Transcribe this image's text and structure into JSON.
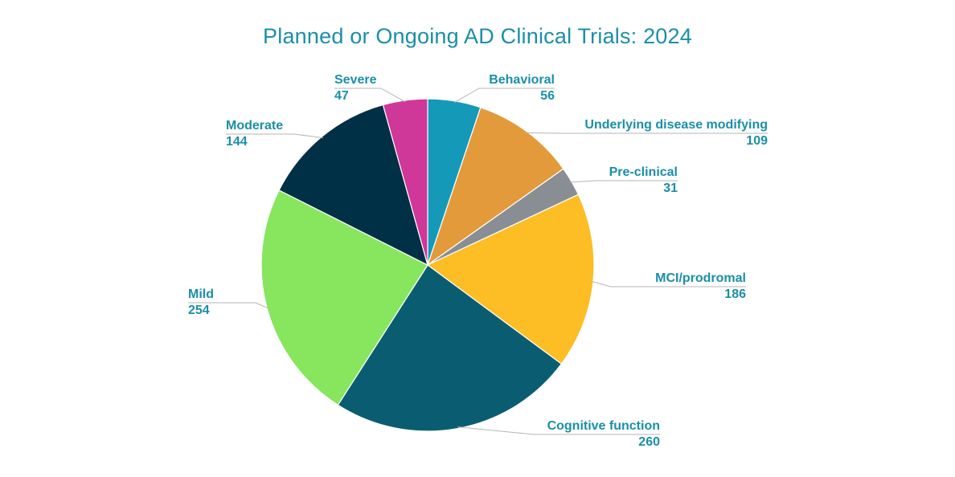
{
  "colors": {
    "title": "#1a8fa8",
    "label": "#1a8fa8",
    "leader": "#b5b5b5"
  },
  "chart_data": {
    "type": "pie",
    "title": "Planned or Ongoing AD Clinical Trials: 2024",
    "legend": "none",
    "slices": [
      {
        "label": "Behavioral",
        "value": 56,
        "color": "#1499b9"
      },
      {
        "label": "Underlying disease modifying",
        "value": 109,
        "color": "#e39a3a"
      },
      {
        "label": "Pre-clinical",
        "value": 31,
        "color": "#888e94"
      },
      {
        "label": "MCI/prodromal",
        "value": 186,
        "color": "#fdbd24"
      },
      {
        "label": "Cognitive function",
        "value": 260,
        "color": "#0a5d71"
      },
      {
        "label": "Mild",
        "value": 254,
        "color": "#88e55e"
      },
      {
        "label": "Moderate",
        "value": 144,
        "color": "#003045"
      },
      {
        "label": "Severe",
        "value": 47,
        "color": "#cf3799"
      }
    ]
  }
}
